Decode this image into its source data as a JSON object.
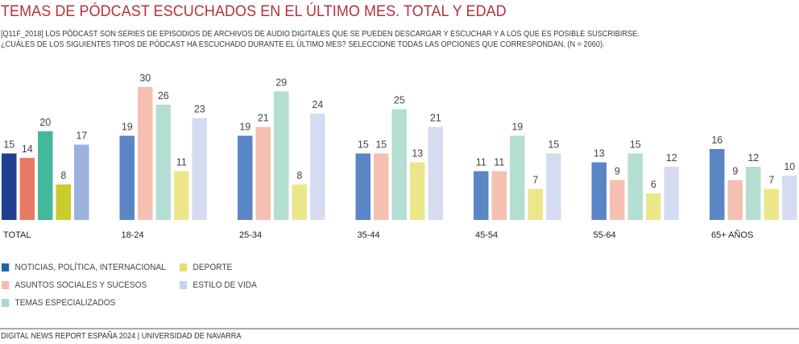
{
  "header": {
    "title": "TEMAS DE PÓDCAST ESCUCHADOS EN EL ÚLTIMO MES. TOTAL Y EDAD",
    "subtitle_line1": "[Q11F_2018] LOS PÓDCAST SON SERIES DE EPISODIOS DE ARCHIVOS DE AUDIO DIGITALES QUE SE PUEDEN DESCARGAR Y ESCUCHAR Y A LOS QUE ES POSIBLE SUSCRIBIRSE.",
    "subtitle_line2": "¿CUÁLES DE LOS SIGUIENTES TIPOS DE PÓDCAST HA ESCUCHADO DURANTE EL ÚLTIMO MES? SELECCIONE TODAS LAS OPCIONES QUE CORRESPONDAN. (N = 2060)."
  },
  "chart_data": {
    "type": "bar",
    "title": "TEMAS DE PÓDCAST ESCUCHADOS EN EL ÚLTIMO MES. TOTAL Y EDAD",
    "xlabel": "",
    "ylabel": "",
    "ylim": [
      0,
      30
    ],
    "grid": false,
    "legend_position": "bottom-left",
    "categories": [
      "TOTAL",
      "18-24",
      "25-34",
      "35-44",
      "45-54",
      "55-64",
      "65+ AÑOS"
    ],
    "series": [
      {
        "name": "NOTICIAS, POLÍTICA, INTERNACIONAL",
        "values": [
          15,
          19,
          19,
          15,
          11,
          13,
          16
        ]
      },
      {
        "name": "ASUNTOS SOCIALES Y SUCESOS",
        "values": [
          14,
          30,
          21,
          15,
          11,
          9,
          9
        ]
      },
      {
        "name": "TEMAS ESPECIALIZADOS",
        "values": [
          20,
          26,
          29,
          25,
          19,
          15,
          12
        ]
      },
      {
        "name": "DEPORTE",
        "values": [
          8,
          11,
          8,
          13,
          7,
          6,
          7
        ]
      },
      {
        "name": "ESTILO DE VIDA",
        "values": [
          17,
          23,
          24,
          21,
          15,
          12,
          10
        ]
      }
    ],
    "colors_total": [
      "#1f3f8f",
      "#e87a65",
      "#43b89a",
      "#c9cc2a",
      "#9db1de"
    ],
    "colors_age": [
      "#5a86c5",
      "#f5c0b2",
      "#b4ded1",
      "#ece68a",
      "#d5dcf1"
    ]
  },
  "legend": {
    "items": [
      {
        "label": "NOTICIAS, POLÍTICA, INTERNACIONAL",
        "color": "#1f63a8"
      },
      {
        "label": "ASUNTOS SOCIALES Y SUCESOS",
        "color": "#f5b9ab"
      },
      {
        "label": "TEMAS ESPECIALIZADOS",
        "color": "#a6d9c8"
      },
      {
        "label": "DEPORTE",
        "color": "#e6e06a"
      },
      {
        "label": "ESTILO DE VIDA",
        "color": "#c8d3ee"
      }
    ]
  },
  "footer": {
    "source": "DIGITAL NEWS REPORT ESPAÑA 2024 | UNIVERSIDAD DE NAVARRA"
  }
}
